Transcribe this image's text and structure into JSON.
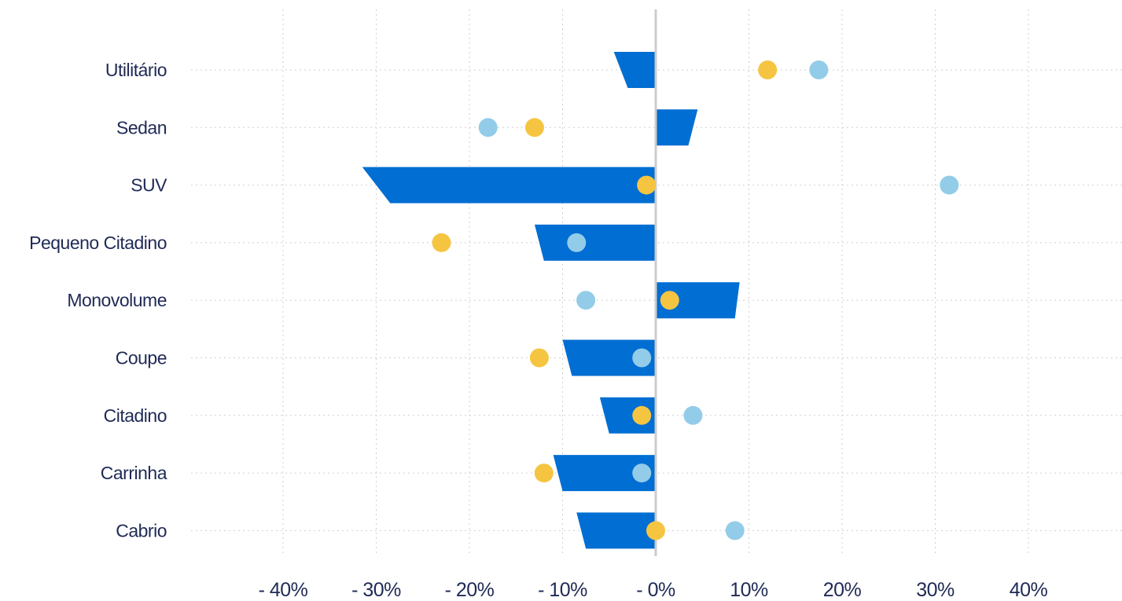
{
  "chart_data": {
    "type": "bar",
    "title": "",
    "xlabel": "",
    "ylabel": "",
    "orientation": "horizontal",
    "xlim": [
      -45,
      50
    ],
    "x_ticks": [
      -40,
      -30,
      -20,
      -10,
      0,
      10,
      20,
      30,
      40
    ],
    "x_tick_labels": [
      "- 40%",
      "- 30%",
      "- 20%",
      "- 10%",
      "- 0%",
      "10%",
      "20%",
      "30%",
      "40%"
    ],
    "grid": true,
    "categories": [
      "Utilitário",
      "Sedan",
      "SUV",
      "Pequeno Citadino",
      "Monovolume",
      "Coupe",
      "Citadino",
      "Carrinha",
      "Cabrio"
    ],
    "bars": [
      {
        "top": -4.5,
        "bottom": -3.0
      },
      {
        "top": 4.5,
        "bottom": 3.5
      },
      {
        "top": -31.5,
        "bottom": -28.5
      },
      {
        "top": -13.0,
        "bottom": -12.0
      },
      {
        "top": 9.0,
        "bottom": 8.5
      },
      {
        "top": -10.0,
        "bottom": -9.0
      },
      {
        "top": -6.0,
        "bottom": -5.0
      },
      {
        "top": -11.0,
        "bottom": -10.0
      },
      {
        "top": -8.5,
        "bottom": -7.5
      }
    ],
    "series": [
      {
        "values": [
          12.0,
          -13.0,
          -1.0,
          -23.0,
          1.5,
          -12.5,
          -1.5,
          -12.0,
          0.0
        ],
        "color": "#f5c542"
      },
      {
        "values": [
          17.5,
          -18.0,
          31.5,
          -8.5,
          -7.5,
          -1.5,
          4.0,
          -1.5,
          8.5
        ],
        "color": "#93cce8"
      }
    ],
    "colors": {
      "bar": "#006ed2",
      "zero_line": "#cccccc",
      "grid": "#cfcfcf",
      "text": "#1f2a55"
    }
  }
}
